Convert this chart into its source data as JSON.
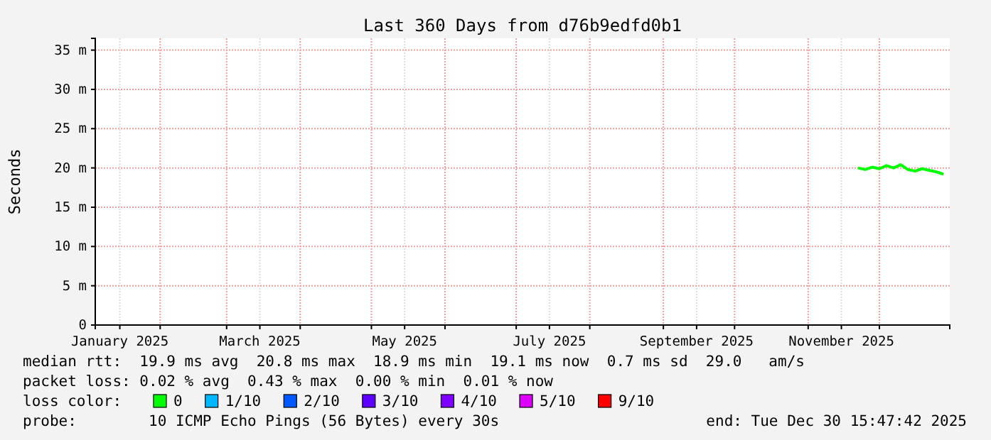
{
  "chart_data": {
    "type": "line",
    "title": "Last 360 Days from d76b9edfd0b1",
    "ylabel": "Seconds",
    "xlim": [
      "2025-01-04T15:47",
      "2025-12-30T15:47"
    ],
    "xticks": [
      {
        "value": "2025-01-15",
        "label": "January 2025"
      },
      {
        "value": "2025-02-01",
        "label": null
      },
      {
        "value": "2025-03-01",
        "label": null
      },
      {
        "value": "2025-03-15",
        "label": "March 2025"
      },
      {
        "value": "2025-04-01",
        "label": null
      },
      {
        "value": "2025-05-01",
        "label": null
      },
      {
        "value": "2025-05-15",
        "label": "May 2025"
      },
      {
        "value": "2025-06-01",
        "label": null
      },
      {
        "value": "2025-07-01",
        "label": null
      },
      {
        "value": "2025-07-15",
        "label": "July 2025"
      },
      {
        "value": "2025-08-01",
        "label": null
      },
      {
        "value": "2025-09-01",
        "label": null
      },
      {
        "value": "2025-09-15",
        "label": "September 2025"
      },
      {
        "value": "2025-10-01",
        "label": null
      },
      {
        "value": "2025-11-01",
        "label": null
      },
      {
        "value": "2025-11-15",
        "label": "November 2025"
      },
      {
        "value": "2025-12-01",
        "label": null
      }
    ],
    "ylim": [
      0,
      36.5
    ],
    "yticks": [
      0,
      {
        "value": 5,
        "label": "5 m"
      },
      {
        "value": 10,
        "label": "10 m"
      },
      {
        "value": 15,
        "label": "15 m"
      },
      {
        "value": 20,
        "label": "20 m"
      },
      {
        "value": 25,
        "label": "25 m"
      },
      {
        "value": 30,
        "label": "30 m"
      },
      {
        "value": 35,
        "label": "35 m"
      }
    ],
    "grid": true,
    "legend": "bottom",
    "legend_title": "loss color:",
    "marker": "none",
    "line_style": "solid",
    "x": [
      "2025-11-22",
      "2025-11-25",
      "2025-11-28",
      "2025-12-01",
      "2025-12-04",
      "2025-12-07",
      "2025-12-10",
      "2025-12-13",
      "2025-12-16",
      "2025-12-19",
      "2025-12-22",
      "2025-12-25",
      "2025-12-28"
    ],
    "series": [
      {
        "name": "0",
        "color": "#00ff00",
        "values": [
          20.0,
          19.8,
          20.1,
          19.9,
          20.3,
          20.0,
          20.4,
          19.8,
          19.6,
          19.9,
          19.7,
          19.5,
          19.2
        ]
      },
      {
        "name": "1/10",
        "color": "#00b8ff",
        "values": [
          null,
          null,
          null,
          null,
          null,
          null,
          null,
          null,
          null,
          null,
          null,
          null,
          null
        ]
      },
      {
        "name": "2/10",
        "color": "#0059ff",
        "values": [
          null,
          null,
          null,
          null,
          null,
          null,
          null,
          null,
          null,
          null,
          null,
          null,
          null
        ]
      },
      {
        "name": "3/10",
        "color": "#5e00ff",
        "values": [
          null,
          null,
          null,
          null,
          null,
          null,
          null,
          null,
          null,
          null,
          null,
          null,
          null
        ]
      },
      {
        "name": "4/10",
        "color": "#7e00ff",
        "values": [
          null,
          null,
          null,
          null,
          null,
          null,
          null,
          null,
          null,
          null,
          null,
          null,
          null
        ]
      },
      {
        "name": "5/10",
        "color": "#dd00ff",
        "values": [
          null,
          null,
          null,
          null,
          null,
          null,
          null,
          null,
          null,
          null,
          null,
          null,
          null
        ]
      },
      {
        "name": "9/10",
        "color": "#ff0000",
        "values": [
          null,
          null,
          null,
          null,
          null,
          null,
          null,
          null,
          null,
          null,
          null,
          null,
          null
        ]
      }
    ],
    "annotations": [
      "median rtt:  19.9 ms avg  20.8 ms max  18.9 ms min  19.1 ms now  0.7 ms sd  29.0   am/s",
      "packet loss: 0.02 % avg  0.43 % max  0.00 % min  0.01 % now",
      "probe:        10 ICMP Echo Pings (56 Bytes) every 30s",
      "end: Tue Dec 30 15:47:42 2025"
    ]
  }
}
